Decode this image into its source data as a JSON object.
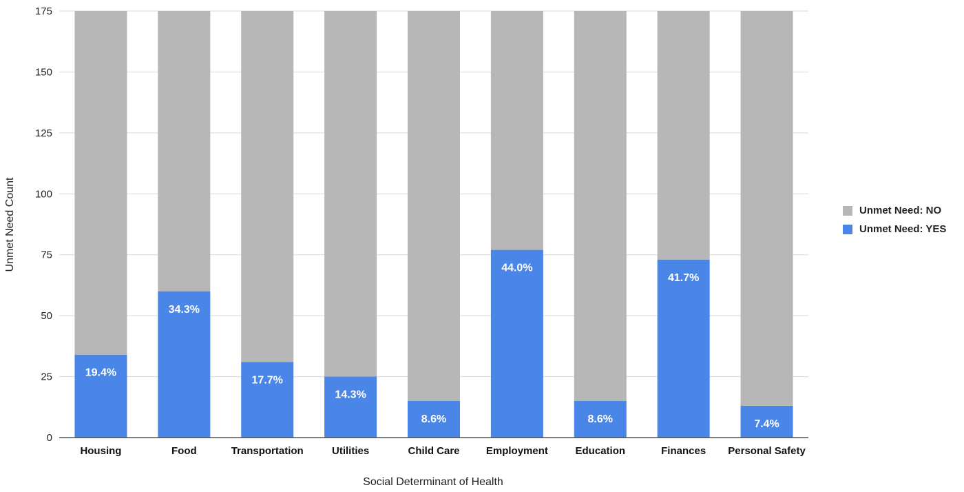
{
  "chart_data": {
    "type": "bar",
    "stacked": true,
    "categories": [
      "Housing",
      "Food",
      "Transportation",
      "Utilities",
      "Child Care",
      "Employment",
      "Education",
      "Finances",
      "Personal Safety"
    ],
    "series": [
      {
        "name": "Unmet Need: YES",
        "color": "#4a86e8",
        "values": [
          34,
          60,
          31,
          25,
          15,
          77,
          15,
          73,
          13
        ],
        "labels": [
          "19.4%",
          "34.3%",
          "17.7%",
          "14.3%",
          "8.6%",
          "44.0%",
          "8.6%",
          "41.7%",
          "7.4%"
        ]
      },
      {
        "name": "Unmet Need: NO",
        "color": "#b7b7b7",
        "values": [
          141,
          115,
          144,
          150,
          160,
          98,
          160,
          102,
          162
        ]
      }
    ],
    "legend_order": [
      "Unmet Need: NO",
      "Unmet Need: YES"
    ],
    "xlabel": "Social Determinant of Health",
    "ylabel": "Unmet Need Count",
    "ylim": [
      0,
      175
    ],
    "yticks": [
      0,
      25,
      50,
      75,
      100,
      125,
      150,
      175
    ],
    "grid": true,
    "legend_position": "right"
  }
}
